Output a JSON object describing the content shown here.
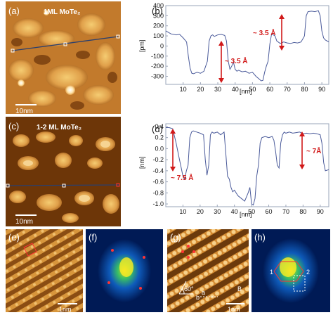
{
  "figure": {
    "panels": {
      "a": {
        "label": "(a)",
        "title": "1ML MoTe₂",
        "scalebar": "10nm"
      },
      "b": {
        "label": "(b)"
      },
      "c": {
        "label": "(c)",
        "title": "1-2 ML MoTe₂",
        "scalebar": "10nm"
      },
      "d": {
        "label": "(d)"
      },
      "e": {
        "label": "(e)",
        "scalebar": "1nm"
      },
      "f": {
        "label": "(f)"
      },
      "g": {
        "label": "(g)",
        "scalebar": "1nm",
        "angle": "60°",
        "vec_a": "a",
        "vec_b": "b",
        "region": "B"
      },
      "h": {
        "label": "(h)",
        "mark1": "1",
        "mark2": "2"
      }
    }
  },
  "chart_data": [
    {
      "type": "line",
      "panel": "b",
      "xlabel": "[nm]",
      "ylabel": "[pm]",
      "xlim": [
        0,
        94
      ],
      "ylim": [
        -380,
        400
      ],
      "xticks": [
        10,
        20,
        30,
        40,
        50,
        60,
        70,
        80,
        90
      ],
      "yticks": [
        400,
        300,
        200,
        100,
        0,
        -100,
        -200,
        -300
      ],
      "annotations": [
        "~ 3.5 Å",
        "~ 3.5 Å"
      ],
      "series": [
        {
          "x": [
            0,
            3,
            6,
            8,
            10,
            12,
            13,
            14,
            15,
            16,
            18,
            20,
            22,
            24,
            25,
            26,
            27,
            28,
            30,
            32,
            34,
            35,
            36,
            37,
            38,
            39,
            40,
            41,
            42,
            44,
            46,
            48,
            50,
            52,
            54,
            55,
            56,
            57,
            58,
            59,
            60,
            61,
            62,
            63,
            64,
            66,
            68,
            70,
            72,
            74,
            76,
            78,
            80,
            81,
            82,
            84,
            86,
            88,
            89,
            90,
            91,
            92,
            94
          ],
          "y": [
            150,
            120,
            110,
            115,
            80,
            40,
            -100,
            -220,
            -270,
            -275,
            -260,
            -270,
            -250,
            -150,
            50,
            100,
            110,
            95,
            110,
            115,
            105,
            50,
            -150,
            -230,
            -200,
            -160,
            -230,
            -250,
            -240,
            -255,
            -250,
            -270,
            -260,
            -300,
            -330,
            -345,
            -340,
            -260,
            -200,
            -150,
            20,
            120,
            110,
            100,
            50,
            25,
            40,
            30,
            25,
            35,
            30,
            40,
            100,
            300,
            340,
            345,
            340,
            350,
            300,
            150,
            80,
            60,
            40
          ]
        }
      ]
    },
    {
      "type": "line",
      "panel": "d",
      "xlabel": "[nm]",
      "ylabel": "[nm]",
      "xlim": [
        0,
        95
      ],
      "ylim": [
        -1.05,
        0.45
      ],
      "xticks": [
        10,
        20,
        30,
        40,
        50,
        60,
        70,
        80,
        90
      ],
      "yticks": [
        0.4,
        0.2,
        0.0,
        -0.2,
        -0.4,
        -0.6,
        -0.8,
        -1.0
      ],
      "annotations": [
        "~ 7.5 Å",
        "~ 7Å"
      ],
      "series": [
        {
          "x": [
            0,
            2,
            4,
            6,
            8,
            9,
            10,
            11,
            12,
            13,
            14,
            15,
            16,
            18,
            20,
            22,
            23,
            24,
            25,
            26,
            27,
            28,
            30,
            32,
            34,
            35,
            36,
            37,
            38,
            39,
            40,
            41,
            42,
            44,
            46,
            48,
            49,
            50,
            51,
            52,
            53,
            54,
            55,
            56,
            58,
            60,
            62,
            63,
            64,
            65,
            66,
            67,
            68,
            69,
            70,
            72,
            74,
            76,
            78,
            80,
            82,
            84,
            86,
            88,
            90,
            91,
            92,
            93,
            95
          ],
          "y": [
            0.38,
            0.38,
            0.36,
            0.1,
            -0.2,
            -0.35,
            -0.5,
            -0.55,
            -0.4,
            -0.3,
            0.2,
            0.3,
            0.32,
            0.3,
            0.28,
            0.25,
            -0.2,
            -0.48,
            -0.3,
            0.25,
            0.3,
            0.28,
            0.3,
            0.25,
            0.3,
            -0.1,
            -0.5,
            -0.55,
            -0.7,
            -0.78,
            -0.75,
            -0.8,
            -0.85,
            -0.9,
            -0.95,
            -0.8,
            -0.7,
            -1.0,
            -1.02,
            -0.9,
            -0.5,
            -0.3,
            0.1,
            0.2,
            0.22,
            0.2,
            0.22,
            0.15,
            -0.05,
            -0.3,
            -0.35,
            0.1,
            0.25,
            0.3,
            0.28,
            0.3,
            0.28,
            0.29,
            0.3,
            0.27,
            0.28,
            0.27,
            0.28,
            0.27,
            0.25,
            0.1,
            -0.25,
            -0.4,
            -0.38
          ]
        }
      ]
    }
  ]
}
